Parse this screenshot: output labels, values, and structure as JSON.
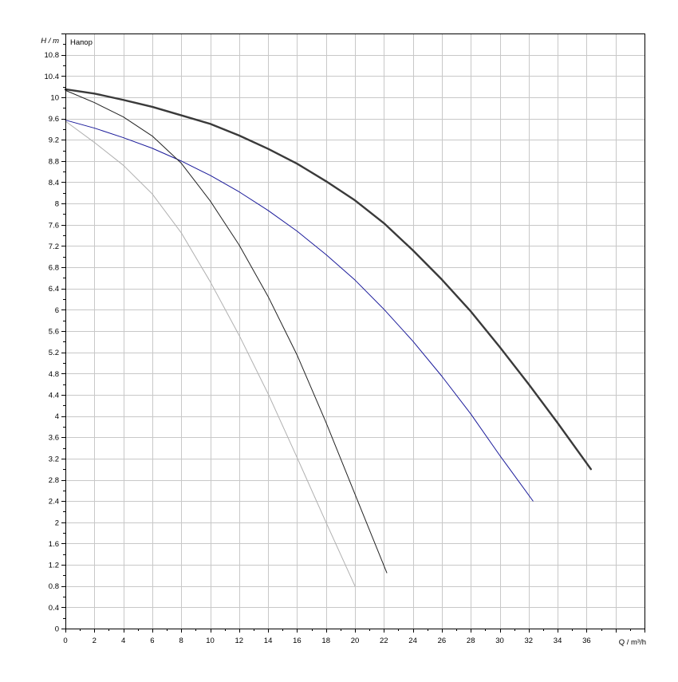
{
  "chart_data": {
    "type": "line",
    "title": "Напор",
    "ylabel": "H / m",
    "xlabel": "Q / m³/h",
    "xlim": [
      0,
      40
    ],
    "ylim": [
      0,
      11.2
    ],
    "x_ticks": [
      "0",
      "2",
      "4",
      "6",
      "8",
      "10",
      "12",
      "14",
      "16",
      "18",
      "20",
      "22",
      "24",
      "26",
      "28",
      "30",
      "32",
      "34",
      "36"
    ],
    "y_ticks": [
      "0",
      "0.4",
      "0.8",
      "1.2",
      "1.6",
      "2",
      "2.4",
      "2.8",
      "3.2",
      "3.6",
      "4",
      "4.4",
      "4.8",
      "5.2",
      "5.6",
      "6",
      "6.4",
      "6.8",
      "7.2",
      "7.6",
      "8",
      "8.4",
      "8.8",
      "9.2",
      "9.6",
      "10",
      "10.4",
      "10.8"
    ],
    "grid": true,
    "colors": {
      "grid": "#c8c8c8",
      "axes": "#000000"
    },
    "series": [
      {
        "color": "#3a3a3a",
        "stroke": "thick",
        "x": [
          0,
          2,
          4,
          6,
          8,
          10,
          12,
          14,
          16,
          18,
          20,
          22,
          24,
          26,
          28,
          30,
          32,
          34,
          36.3
        ],
        "y": [
          10.15,
          10.07,
          9.95,
          9.82,
          9.66,
          9.5,
          9.28,
          9.03,
          8.75,
          8.42,
          8.06,
          7.63,
          7.12,
          6.57,
          5.97,
          5.3,
          4.6,
          3.87,
          3.0
        ]
      },
      {
        "color": "#1a1a9a",
        "stroke": "thin",
        "x": [
          0,
          2,
          4,
          6,
          8,
          10,
          12,
          14,
          16,
          18,
          20,
          22,
          24,
          26,
          28,
          30,
          32.3
        ],
        "y": [
          9.57,
          9.42,
          9.24,
          9.04,
          8.8,
          8.53,
          8.22,
          7.87,
          7.48,
          7.04,
          6.56,
          6.01,
          5.41,
          4.75,
          4.04,
          3.26,
          2.4
        ]
      },
      {
        "color": "#222222",
        "stroke": "thin",
        "x": [
          0,
          2,
          4,
          6,
          8,
          10,
          12,
          14,
          16,
          18,
          20,
          22.2
        ],
        "y": [
          10.13,
          9.9,
          9.63,
          9.27,
          8.76,
          8.05,
          7.22,
          6.25,
          5.15,
          3.88,
          2.53,
          1.05
        ]
      },
      {
        "color": "#b0b0b0",
        "stroke": "thin",
        "x": [
          0,
          2,
          4,
          6,
          8,
          10,
          12,
          14,
          16,
          18,
          20
        ],
        "y": [
          9.55,
          9.15,
          8.72,
          8.18,
          7.45,
          6.53,
          5.52,
          4.42,
          3.22,
          2.0,
          0.8
        ]
      }
    ]
  }
}
